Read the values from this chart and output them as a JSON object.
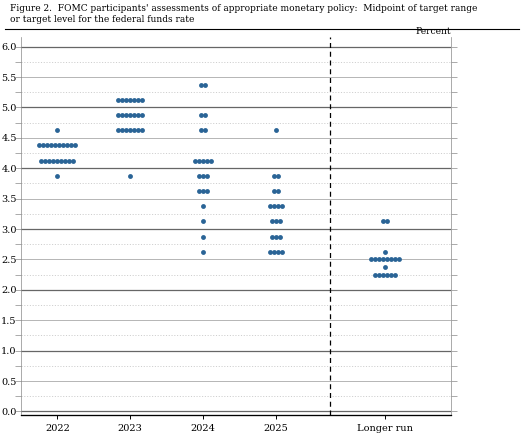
{
  "title_line1": "Figure 2.  FOMC participants' assessments of appropriate monetary policy:  Midpoint of target range",
  "title_line2": "or target level for the federal funds rate",
  "dot_color": "#2a6496",
  "dot_size": 3.5,
  "background_color": "#ffffff",
  "yticks": [
    0.0,
    0.5,
    1.0,
    1.5,
    2.0,
    2.5,
    3.0,
    3.5,
    4.0,
    4.5,
    5.0,
    5.5,
    6.0
  ],
  "xlabel_labels": [
    "2022",
    "2023",
    "2024",
    "2025",
    "Longer run"
  ],
  "percent_label": "Percent",
  "dots": {
    "2022": {
      "4.625": 1,
      "4.375": 10,
      "4.125": 9,
      "3.875": 1
    },
    "2023": {
      "5.125": 7,
      "4.875": 7,
      "4.625": 7,
      "3.875": 1
    },
    "2024": {
      "5.375": 2,
      "4.875": 2,
      "4.625": 2,
      "4.125": 5,
      "3.875": 3,
      "3.625": 3,
      "3.375": 1,
      "3.125": 1,
      "2.875": 1,
      "2.625": 1
    },
    "2025": {
      "4.625": 1,
      "3.875": 2,
      "3.625": 2,
      "3.375": 4,
      "3.125": 3,
      "2.875": 3,
      "2.625": 4
    },
    "longer_run": {
      "3.125": 2,
      "2.625": 1,
      "2.500": 8,
      "2.375": 1,
      "2.250": 6
    }
  }
}
